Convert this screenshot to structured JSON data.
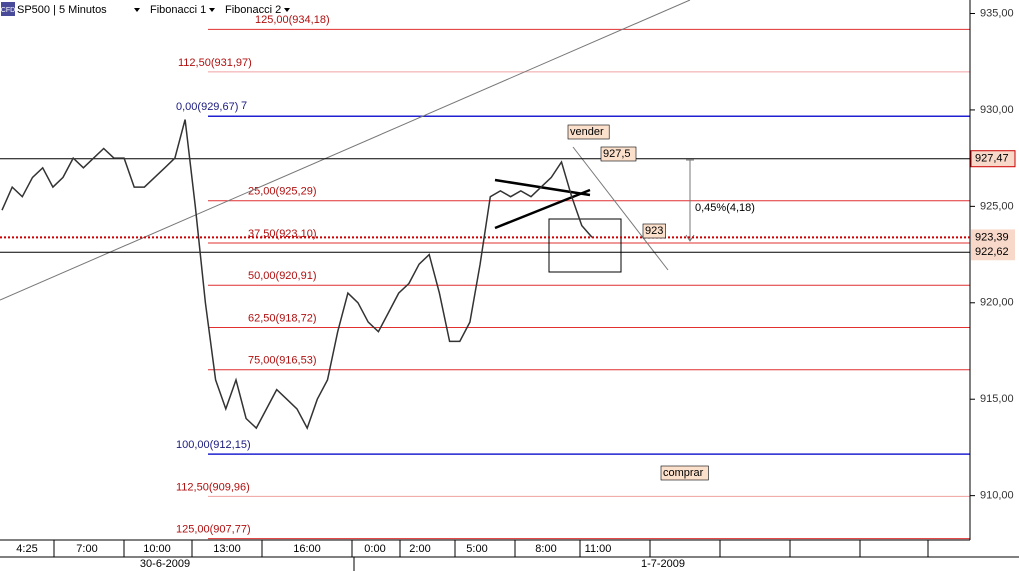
{
  "toolbar": {
    "logo": "CFD",
    "symbol": "SP500 | 5 Minutos",
    "menus": [
      "Fibonacci 1",
      "Fibonacci 2"
    ]
  },
  "chart_data": {
    "type": "line",
    "series": [
      {
        "name": "SP500 | 5 Minutos",
        "color": "#333333",
        "values": [
          924.8,
          926.0,
          925.5,
          926.5,
          927.0,
          926.0,
          926.5,
          927.5,
          927.0,
          927.5,
          928.0,
          927.5,
          927.5,
          926.0,
          926.0,
          926.5,
          927.0,
          927.5,
          929.5,
          925.0,
          920.0,
          916.0,
          914.5,
          916.0,
          914.0,
          913.5,
          914.5,
          915.5,
          915.0,
          914.5,
          913.5,
          915.0,
          916.0,
          918.5,
          920.5,
          920.0,
          919.0,
          918.5,
          919.5,
          920.5,
          921.0,
          922.0,
          922.5,
          920.5,
          918.0,
          918.0,
          919.0,
          922.0,
          925.5,
          925.8,
          925.5,
          925.8,
          925.5,
          926.0,
          926.5,
          927.3,
          925.5,
          924.0,
          923.4
        ]
      }
    ],
    "ylim": [
      907.7,
      935.7
    ],
    "yticks": [
      {
        "value": 935,
        "label": "935,00"
      },
      {
        "value": 930,
        "label": "930,00"
      },
      {
        "value": 925,
        "label": "925,00"
      },
      {
        "value": 920,
        "label": "920,00"
      },
      {
        "value": 915,
        "label": "915,00"
      },
      {
        "value": 910,
        "label": "910,00"
      }
    ],
    "time_labels": [
      "4:25",
      "7:00",
      "10:00",
      "13:00",
      "16:00",
      "0:00",
      "2:00",
      "5:00",
      "8:00",
      "11:00"
    ],
    "date_labels": [
      "30-6-2009",
      "1-7-2009"
    ],
    "fib_levels": [
      {
        "label": "125,00(934,18)",
        "value": 934.18,
        "color": "#e03030"
      },
      {
        "label": "112,50(931,97)",
        "value": 931.97,
        "color": "#f0a0a0"
      },
      {
        "label": "0,00(929,67)",
        "value": 929.67,
        "color": "#2020d0"
      },
      {
        "label": "25,00(925,29)",
        "value": 925.29,
        "color": "#e03030"
      },
      {
        "label": "37,50(923,10)",
        "value": 923.1,
        "color": "#e03030"
      },
      {
        "label": "50,00(920,91)",
        "value": 920.91,
        "color": "#e03030"
      },
      {
        "label": "62,50(918,72)",
        "value": 918.72,
        "color": "#e03030"
      },
      {
        "label": "75,00(916,53)",
        "value": 916.53,
        "color": "#e03030"
      },
      {
        "label": "100,00(912,15)",
        "value": 912.15,
        "color": "#2020d0"
      },
      {
        "label": "112,50(909,96)",
        "value": 909.96,
        "color": "#f0a0a0"
      },
      {
        "label": "125,00(907,77)",
        "value": 907.77,
        "color": "#e03030"
      }
    ],
    "price_lines": [
      {
        "label": "927,47",
        "value": 927.47,
        "color": "#000000"
      },
      {
        "label": "923,39",
        "value": 923.39,
        "color": "#cc0000"
      },
      {
        "label": "922,62",
        "value": 922.62,
        "color": "#000000"
      }
    ],
    "annotations": [
      "vender",
      "927,5",
      "923",
      "0,45%(4,18)",
      "comprar",
      "7"
    ]
  }
}
